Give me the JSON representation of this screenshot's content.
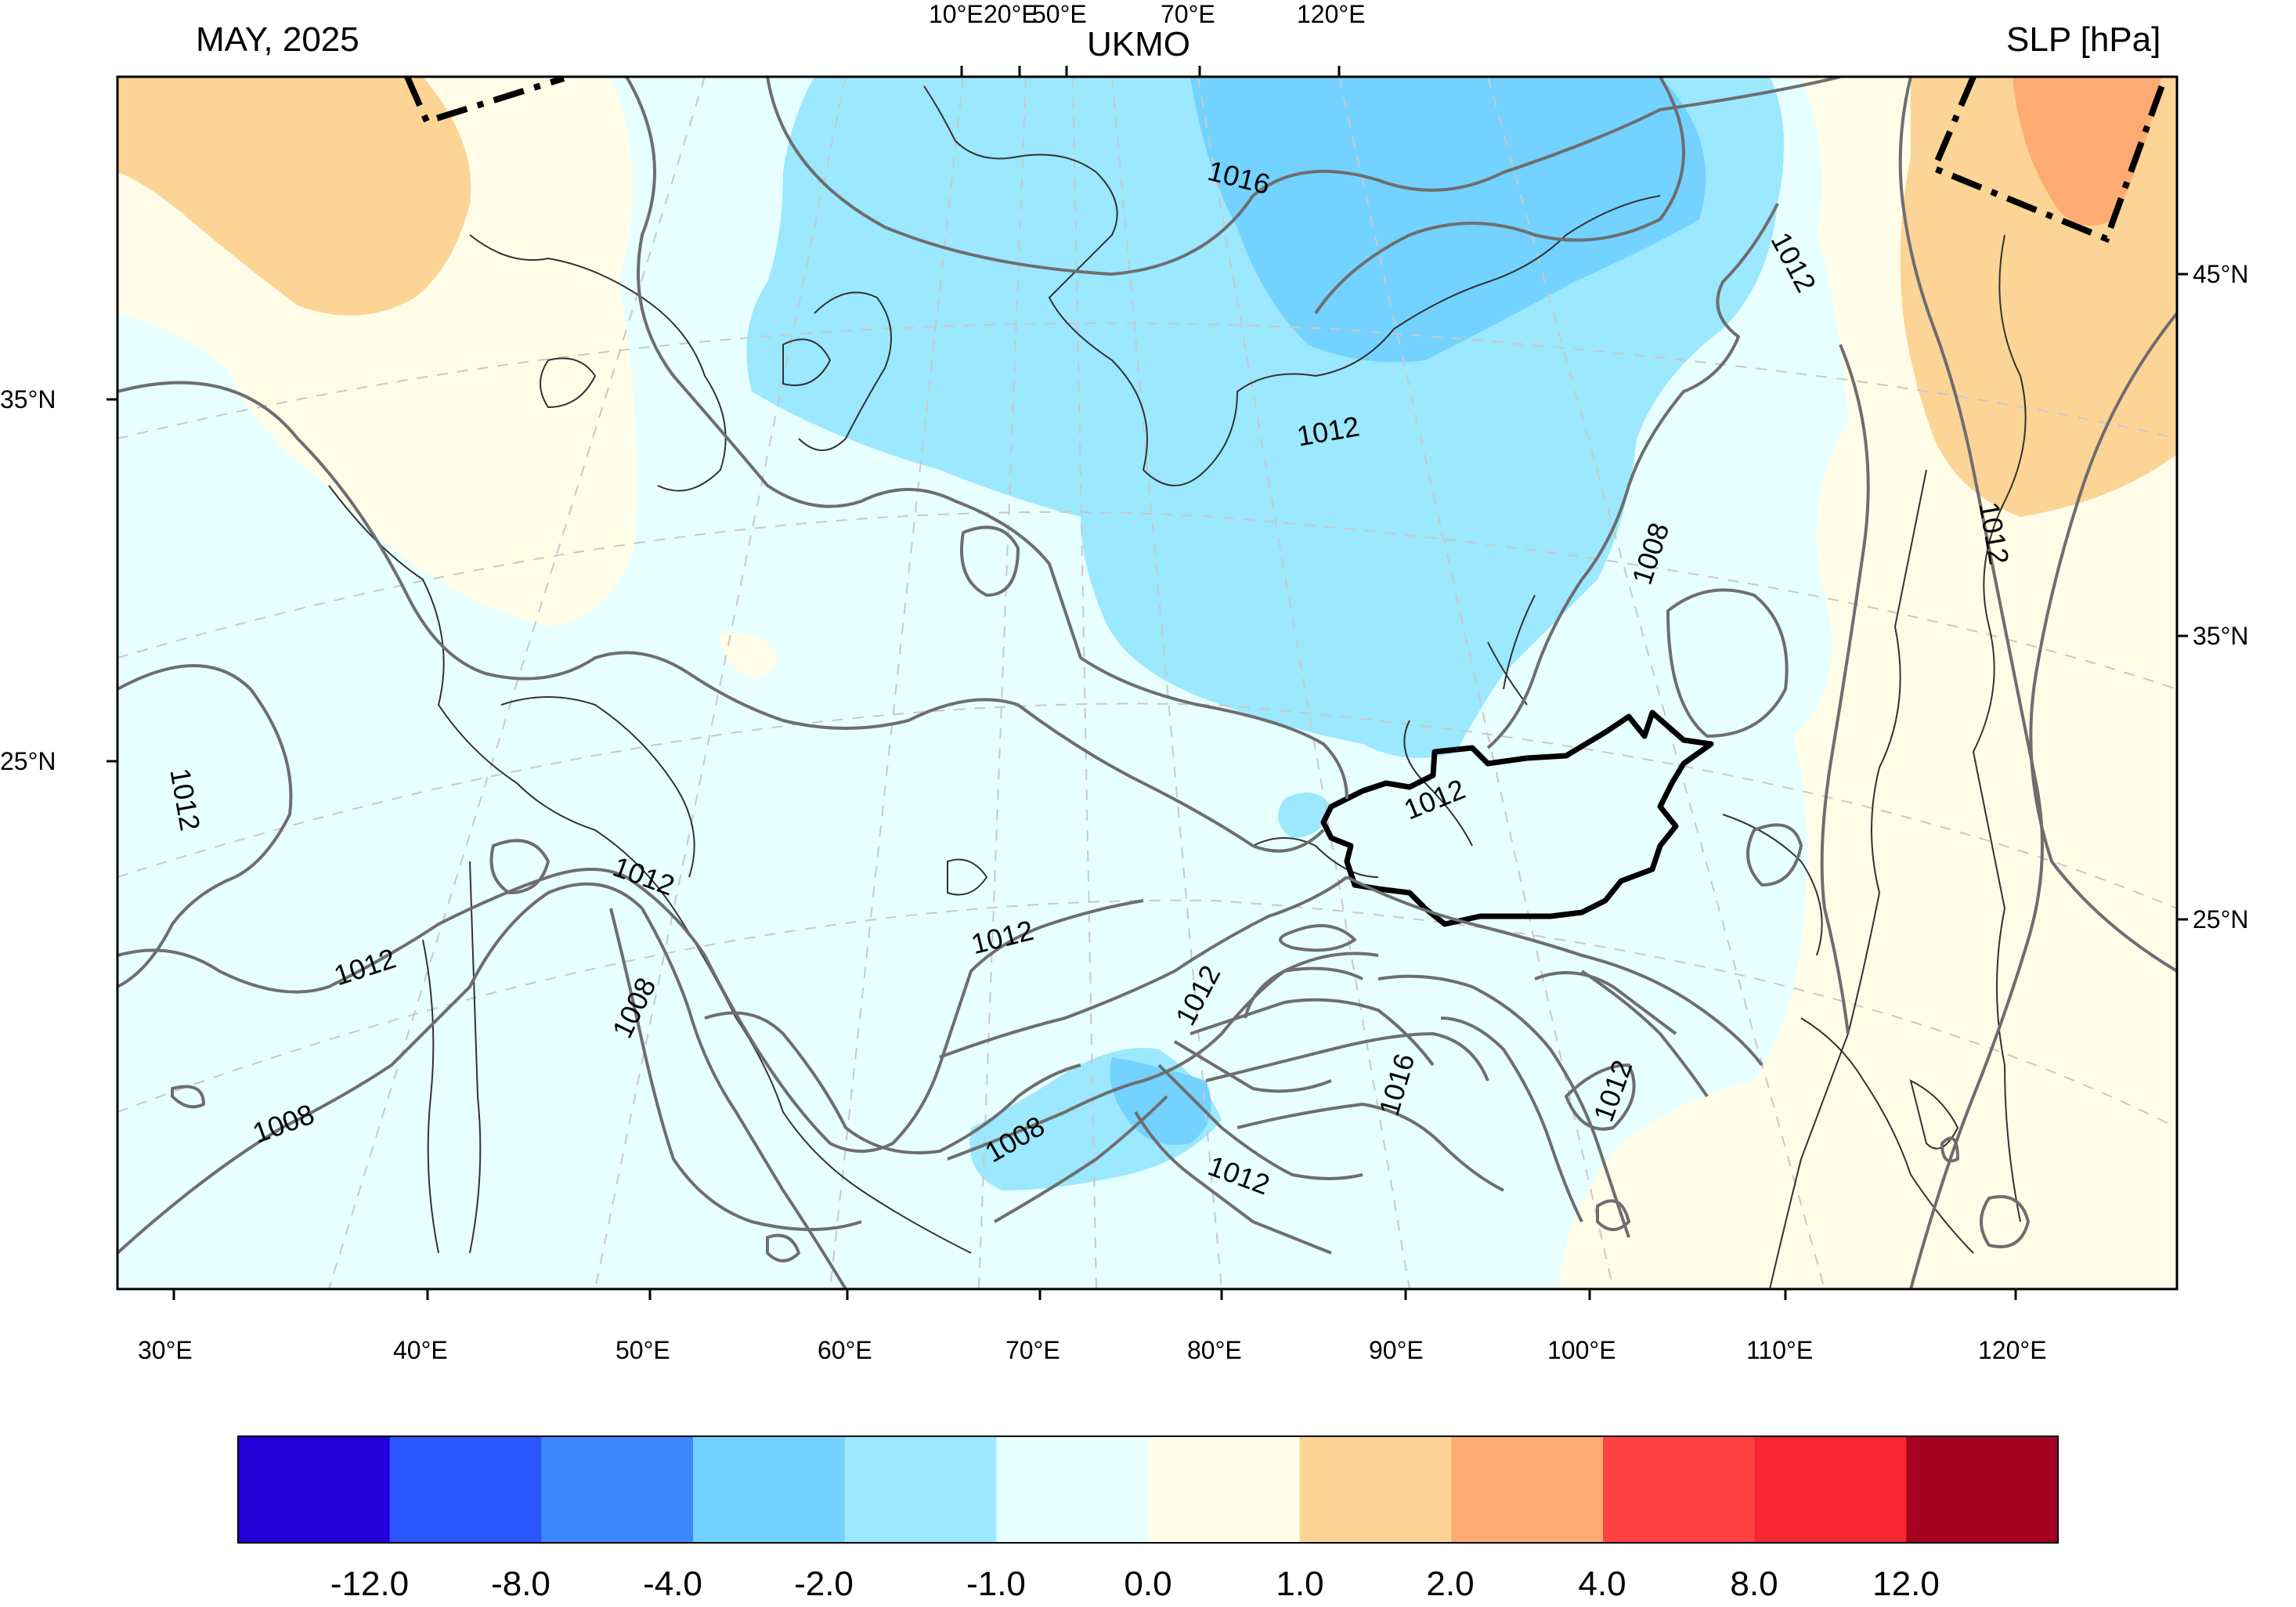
{
  "header": {
    "left_label": "MAY, 2025",
    "center_label": "UKMO",
    "right_label": "SLP [hPa]"
  },
  "top_longitude_ticks": [
    "10°E",
    "20°E",
    "50°E",
    "70°E",
    "120°E"
  ],
  "bottom_longitude_ticks": [
    "30°E",
    "40°E",
    "50°E",
    "60°E",
    "70°E",
    "80°E",
    "90°E",
    "100°E",
    "110°E",
    "120°E"
  ],
  "left_latitude_ticks": [
    "35°N",
    "25°N"
  ],
  "right_latitude_ticks": [
    "45°N",
    "35°N",
    "25°N"
  ],
  "contour_labels": {
    "c1016_north": "1016",
    "c1012_ne": "1012",
    "c1012_north": "1012",
    "c1008_east": "1008",
    "c1012_far_east": "1012",
    "c1012_west": "1012",
    "c1012_caspian": "1012",
    "c1012_mongolia": "1012",
    "c1012_sw": "1012",
    "c1008_west": "1008",
    "c1008_sw": "1008",
    "c1012_center": "1012",
    "c1012_tibet_n": "1012",
    "c1016_tibet": "1016",
    "c1012_se": "1012",
    "c1008_tibet": "1008",
    "c1012_tibet_s": "1012"
  },
  "colorbar": {
    "colors": [
      "#2400d8",
      "#2b56ff",
      "#3d87ff",
      "#73d2ff",
      "#9be8ff",
      "#e8ffff",
      "#fffde8",
      "#fcd495",
      "#fdab73",
      "#ff4141",
      "#f52532",
      "#a50021"
    ],
    "tick_labels": [
      "-12.0",
      "-8.0",
      "-4.0",
      "-2.0",
      "-1.0",
      "0.0",
      "1.0",
      "2.0",
      "4.0",
      "8.0",
      "12.0"
    ]
  },
  "shading_colors": {
    "neg_1": "#e8ffff",
    "neg_2": "#9be8ff",
    "neg_4": "#73d2ff",
    "pos_1": "#fffde8",
    "pos_2": "#fcd495",
    "pos_4": "#fdab73"
  },
  "icons": {
    "mongolia_outline": "country-border",
    "region_box": "dash-dot-box"
  }
}
